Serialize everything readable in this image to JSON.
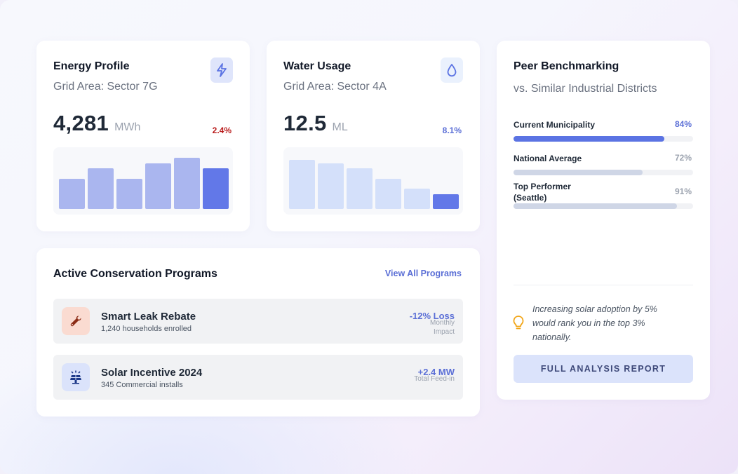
{
  "energy": {
    "title": "Energy Profile",
    "subtitle": "Grid Area: Sector 7G",
    "value": "4,281",
    "unit": "MWh",
    "change": "2.4%",
    "icon": "lightning-icon",
    "change_color": "#b91c1c",
    "chart_data": {
      "type": "bar",
      "values": [
        43,
        58,
        43,
        65,
        73,
        58
      ],
      "colors": [
        "#aab6ef",
        "#aab6ef",
        "#aab6ef",
        "#aab6ef",
        "#aab6ef",
        "#6278e8"
      ]
    }
  },
  "water": {
    "title": "Water Usage",
    "subtitle": "Grid Area: Sector 4A",
    "value": "12.5",
    "unit": "ML",
    "change": "8.1%",
    "icon": "water-drop-icon",
    "change_color": "#5b6fd6",
    "chart_data": {
      "type": "bar",
      "values": [
        70,
        65,
        58,
        43,
        29,
        21
      ],
      "colors": [
        "#d4e0fa",
        "#d4e0fa",
        "#d4e0fa",
        "#d4e0fa",
        "#d4e0fa",
        "#6278e8"
      ]
    }
  },
  "benchmark": {
    "title": "Peer Benchmarking",
    "subtitle": "vs. Similar Industrial Districts",
    "rows": [
      {
        "label": "Current Municipality",
        "value": "84%",
        "percent": 84,
        "color": "#5b73e3",
        "value_color": "#5b6fd6"
      },
      {
        "label": "National Average",
        "value": "72%",
        "percent": 72,
        "color": "#cfd6e6",
        "value_color": "#9ca3af"
      },
      {
        "label": "Top Performer (Seattle)",
        "value": "91%",
        "percent": 91,
        "color": "#cfd6e6",
        "value_color": "#9ca3af"
      }
    ],
    "insight": "Increasing solar adoption by 5% would rank you in the top 3% nationally.",
    "insight_icon": "lightbulb-icon",
    "cta": "FULL ANALYSIS REPORT"
  },
  "programs": {
    "title": "Active Conservation Programs",
    "view_all": "View All Programs",
    "items": [
      {
        "name": "Smart Leak Rebate",
        "detail": "1,240 households enrolled",
        "metric": "-12% Loss",
        "metric_sub": "Monthly Impact",
        "icon": "wrench-icon"
      },
      {
        "name": "Solar Incentive 2024",
        "detail": "345 Commercial installs",
        "metric": "+2.4 MW",
        "metric_sub": "Total Feed-in",
        "icon": "solar-panel-icon"
      }
    ]
  }
}
